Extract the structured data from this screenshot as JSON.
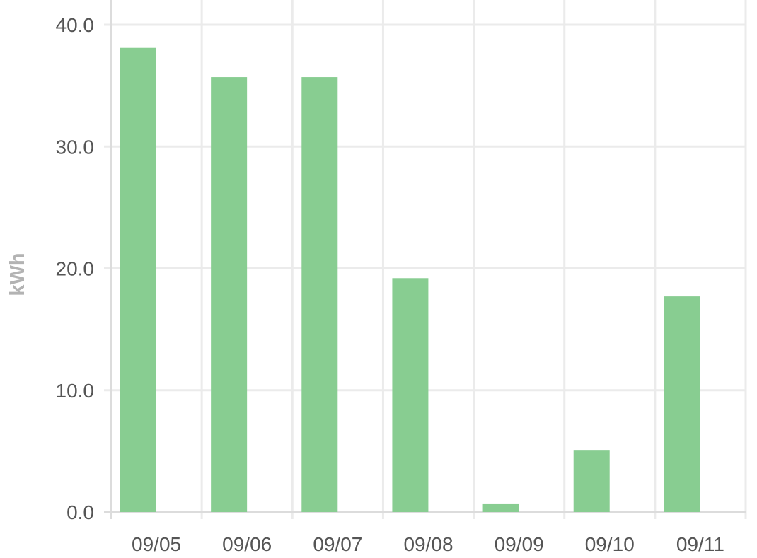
{
  "chart_data": {
    "type": "bar",
    "categories": [
      "09/05",
      "09/06",
      "09/07",
      "09/08",
      "09/09",
      "09/10",
      "09/11"
    ],
    "series": [
      {
        "values": [
          38.1,
          35.7,
          35.7,
          19.2,
          0.7,
          5.1,
          17.7
        ]
      }
    ],
    "ylabel": "kWh",
    "xlabel": "",
    "title": "",
    "ylim": [
      0,
      40
    ],
    "y_ticks": [
      "0.0",
      "10.0",
      "20.0",
      "30.0",
      "40.0"
    ],
    "grid": true,
    "bar_color": "#88cd91",
    "grid_color": "#ebebeb"
  }
}
